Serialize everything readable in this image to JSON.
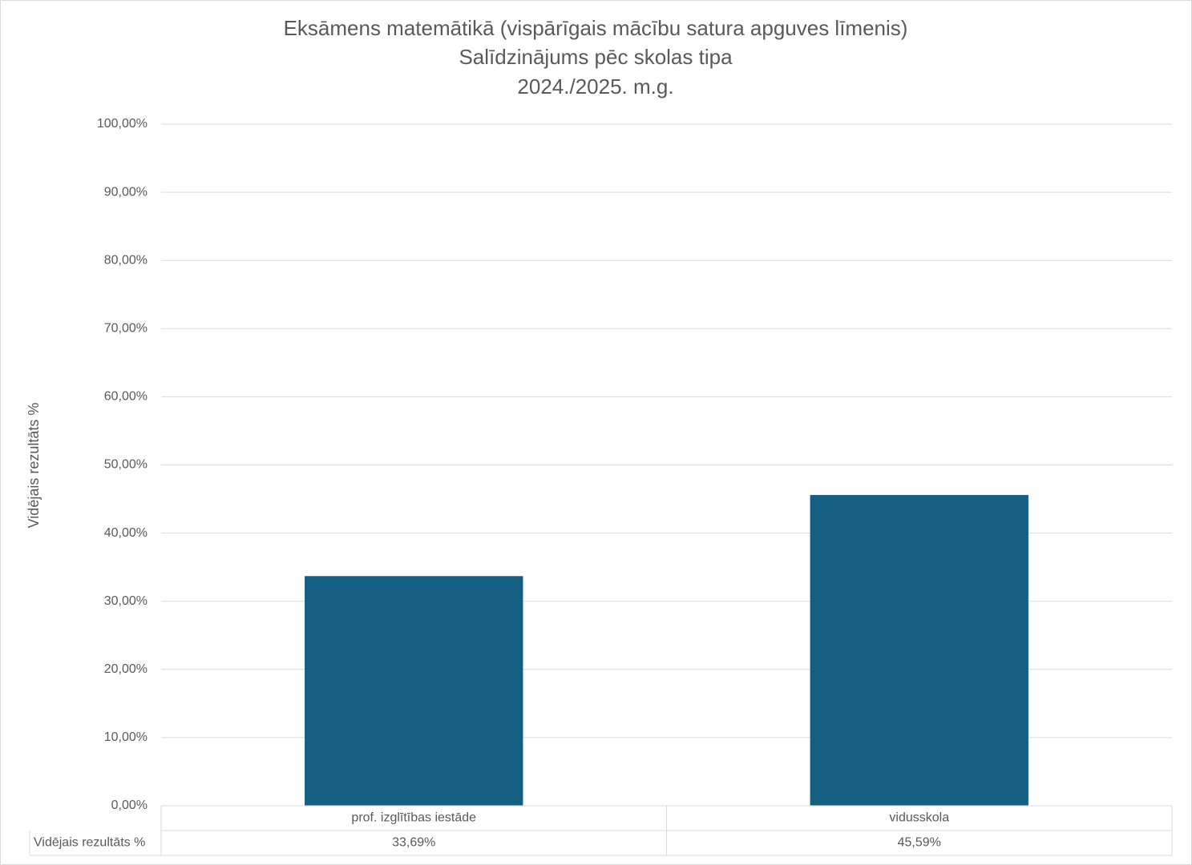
{
  "chart_data": {
    "type": "bar",
    "title": [
      "Eksāmens matemātikā (vispārīgais mācību satura apguves līmenis)",
      "Salīdzinājums pēc skolas tipa",
      "2024./2025. m.g."
    ],
    "y_label": "Vidējais rezultāts %",
    "categories": [
      "prof. izglītības iestāde",
      "vidusskola"
    ],
    "series": [
      {
        "name": "Vidējais rezultāts %",
        "color": "#156082",
        "values": [
          33.69,
          45.59
        ],
        "value_labels": [
          "33,69%",
          "45,59%"
        ]
      }
    ],
    "ylim": [
      0,
      100
    ],
    "yticks": [
      {
        "value": 0,
        "label": "0,00%"
      },
      {
        "value": 10,
        "label": "10,00%"
      },
      {
        "value": 20,
        "label": "20,00%"
      },
      {
        "value": 30,
        "label": "30,00%"
      },
      {
        "value": 40,
        "label": "40,00%"
      },
      {
        "value": 50,
        "label": "50,00%"
      },
      {
        "value": 60,
        "label": "60,00%"
      },
      {
        "value": 70,
        "label": "70,00%"
      },
      {
        "value": 80,
        "label": "80,00%"
      },
      {
        "value": 90,
        "label": "90,00%"
      },
      {
        "value": 100,
        "label": "100,00%"
      }
    ],
    "grid": true
  }
}
